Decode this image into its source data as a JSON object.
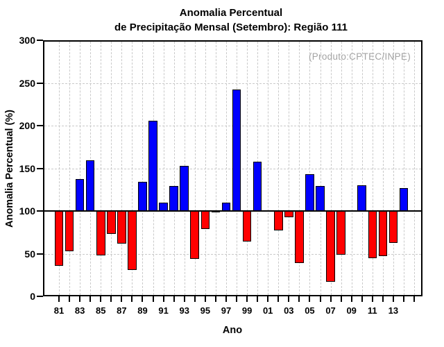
{
  "title": {
    "line1": "Anomalia Percentual",
    "line2": "de Precipitação Mensal (Setembro): Região 111"
  },
  "annotation": {
    "text": "(Produto:CPTEC/INPE)",
    "color": "#a3a3a3"
  },
  "axes": {
    "y_label": "Anomalia Percentual (%)",
    "x_label": "Ano",
    "y_tick_labels": [
      "0",
      "50",
      "100",
      "150",
      "200",
      "250",
      "300"
    ],
    "y_tick_values": [
      0,
      50,
      100,
      150,
      200,
      250,
      300
    ],
    "x_tick_labels": [
      "81",
      "83",
      "85",
      "87",
      "89",
      "91",
      "93",
      "95",
      "97",
      "99",
      "01",
      "03",
      "05",
      "07",
      "09",
      "11",
      "13"
    ],
    "grid": "dashed-gray"
  },
  "chart_data": {
    "type": "bar",
    "title": "Anomalia Percentual de Precipitação Mensal (Setembro): Região 111",
    "xlabel": "Ano",
    "ylabel": "Anomalia Percentual (%)",
    "ylim": [
      0,
      300
    ],
    "baseline": 100,
    "x": [
      1981,
      1982,
      1983,
      1984,
      1985,
      1986,
      1987,
      1988,
      1989,
      1990,
      1991,
      1992,
      1993,
      1994,
      1995,
      1996,
      1997,
      1998,
      1999,
      2000,
      2001,
      2002,
      2003,
      2004,
      2005,
      2006,
      2007,
      2008,
      2009,
      2010,
      2011,
      2012,
      2013,
      2014
    ],
    "values": [
      36,
      53,
      137,
      159,
      48,
      73,
      62,
      31,
      134,
      206,
      110,
      129,
      153,
      44,
      79,
      98,
      110,
      242,
      64,
      158,
      null,
      77,
      93,
      39,
      143,
      129,
      17,
      49,
      null,
      130,
      45,
      47,
      63,
      127
    ],
    "colors": {
      "above_baseline": "#0000ff",
      "below_baseline": "#ff0000",
      "outline": "#000000",
      "gridline": "#c9c9c9"
    },
    "legend": null,
    "notes": "bars above 100 are blue, below 100 are red; no bars for 2001 and 2009"
  }
}
